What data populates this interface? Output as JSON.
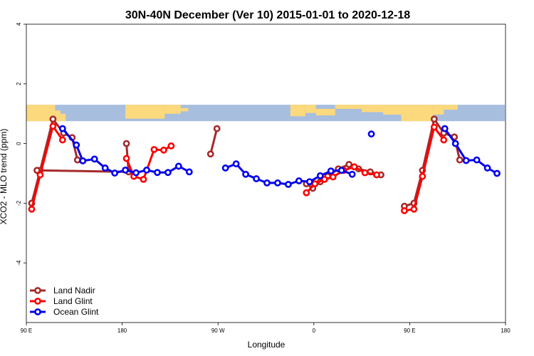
{
  "chart_data": {
    "type": "line",
    "title": "30N-40N December (Ver 10)   2015-01-01 to 2020-12-18",
    "xlabel": "Longitude",
    "ylabel": "XCO2 - MLO trend (ppm)",
    "xlim": [
      -90,
      360
    ],
    "ylim": [
      -6,
      4
    ],
    "x_ticks": [
      {
        "value": -90,
        "label": "90 E"
      },
      {
        "value": 0,
        "label": "180"
      },
      {
        "value": 90,
        "label": "90 W"
      },
      {
        "value": 180,
        "label": "0"
      },
      {
        "value": 270,
        "label": "90 E"
      },
      {
        "value": 360,
        "label": "180"
      }
    ],
    "y_ticks": [
      {
        "value": -4,
        "label": "-4"
      },
      {
        "value": -2,
        "label": "-2"
      },
      {
        "value": 0,
        "label": "0"
      },
      {
        "value": 2,
        "label": "2"
      },
      {
        "value": 4,
        "label": "4"
      }
    ],
    "grid": false,
    "legend_position": "bottom-left",
    "map_band": {
      "y_range": [
        0.75,
        1.3
      ],
      "ocean_color": "#a7bedf",
      "land_color": "#fcd97c"
    },
    "series": [
      {
        "name": "Land Nadir",
        "color": "#a52a2a",
        "segments": [
          [
            [
              -85,
              -2.0
            ],
            [
              -77,
              -0.9
            ],
            [
              -65,
              0.82
            ],
            [
              -55,
              0.35
            ],
            [
              -47,
              0.2
            ],
            [
              -42,
              -0.55
            ]
          ],
          [
            [
              4,
              0.0
            ],
            [
              6,
              -0.95
            ],
            [
              -80,
              -0.9
            ]
          ],
          [
            [
              83,
              -0.35
            ],
            [
              89,
              0.5
            ]
          ],
          [
            [
              173,
              -1.35
            ],
            [
              179,
              -1.5
            ],
            [
              186,
              -1.28
            ],
            [
              193,
              -1.1
            ],
            [
              203,
              -0.85
            ],
            [
              213,
              -0.7
            ],
            [
              222,
              -0.85
            ],
            [
              233,
              -0.95
            ],
            [
              243,
              -1.05
            ]
          ],
          [
            [
              265,
              -2.1
            ],
            [
              274,
              -2.0
            ],
            [
              282,
              -0.9
            ],
            [
              293,
              0.82
            ],
            [
              302,
              0.35
            ],
            [
              312,
              0.22
            ],
            [
              317,
              -0.55
            ]
          ]
        ]
      },
      {
        "name": "Land Glint",
        "color": "#ff0000",
        "segments": [
          [
            [
              -85,
              -2.2
            ],
            [
              -77,
              -1.05
            ],
            [
              -65,
              0.58
            ],
            [
              -56,
              0.12
            ]
          ],
          [
            [
              4,
              -0.5
            ],
            [
              11,
              -1.1
            ],
            [
              20,
              -1.2
            ],
            [
              30,
              -0.2
            ],
            [
              39,
              -0.22
            ],
            [
              46,
              -0.08
            ]
          ],
          [
            [
              173,
              -1.65
            ],
            [
              181,
              -1.35
            ],
            [
              190,
              -1.2
            ],
            [
              198,
              -1.12
            ],
            [
              208,
              -0.9
            ],
            [
              218,
              -0.78
            ],
            [
              228,
              -0.98
            ],
            [
              239,
              -1.05
            ]
          ],
          [
            [
              265,
              -2.25
            ],
            [
              274,
              -2.2
            ],
            [
              282,
              -1.1
            ],
            [
              293,
              0.55
            ],
            [
              302,
              0.12
            ]
          ]
        ]
      },
      {
        "name": "Ocean Glint",
        "color": "#0000ee",
        "segments": [
          [
            [
              -56,
              0.5
            ],
            [
              -43,
              -0.05
            ],
            [
              -37,
              -0.58
            ],
            [
              -26,
              -0.52
            ],
            [
              -16,
              -0.82
            ],
            [
              -7,
              -0.99
            ],
            [
              3,
              -0.89
            ],
            [
              13,
              -0.98
            ],
            [
              23,
              -0.89
            ],
            [
              33,
              -0.97
            ],
            [
              43,
              -0.97
            ],
            [
              53,
              -0.76
            ],
            [
              63,
              -0.95
            ]
          ],
          [
            [
              97,
              -0.82
            ],
            [
              107,
              -0.68
            ],
            [
              116,
              -1.03
            ],
            [
              126,
              -1.18
            ],
            [
              136,
              -1.32
            ],
            [
              146,
              -1.32
            ],
            [
              156,
              -1.37
            ],
            [
              166,
              -1.25
            ],
            [
              176,
              -1.28
            ],
            [
              186,
              -1.08
            ],
            [
              196,
              -0.92
            ],
            [
              206,
              -0.9
            ],
            [
              216,
              -1.03
            ]
          ],
          [
            [
              234,
              0.32
            ]
          ],
          [
            [
              303,
              0.5
            ],
            [
              313,
              0.0
            ],
            [
              323,
              -0.57
            ],
            [
              333,
              -0.55
            ],
            [
              343,
              -0.82
            ],
            [
              352,
              -1.0
            ]
          ]
        ]
      }
    ]
  }
}
